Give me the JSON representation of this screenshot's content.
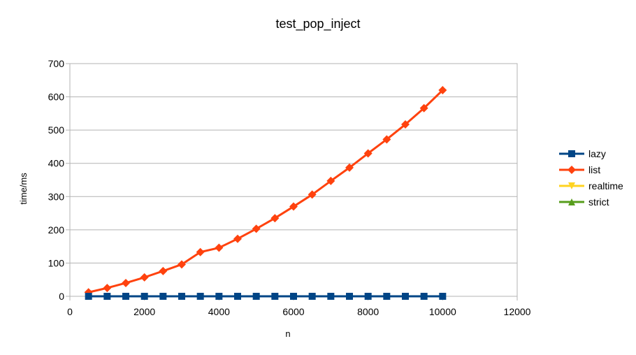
{
  "chart_data": {
    "type": "line",
    "title": "test_pop_inject",
    "xlabel": "n",
    "ylabel": "time/ms",
    "xlim": [
      0,
      12000
    ],
    "ylim": [
      0,
      700
    ],
    "x_ticks": [
      0,
      2000,
      4000,
      6000,
      8000,
      10000,
      12000
    ],
    "y_ticks": [
      0,
      100,
      200,
      300,
      400,
      500,
      600,
      700
    ],
    "grid": "horizontal",
    "legend_position": "right",
    "series": [
      {
        "name": "lazy",
        "color": "#004586",
        "marker": "square",
        "x": [
          500,
          1000,
          1500,
          2000,
          2500,
          3000,
          3500,
          4000,
          4500,
          5000,
          5500,
          6000,
          6500,
          7000,
          7500,
          8000,
          8500,
          9000,
          9500,
          10000
        ],
        "y": [
          0,
          0,
          0,
          0,
          0,
          0,
          0,
          0,
          0,
          0,
          0,
          0,
          0,
          0,
          0,
          0,
          0,
          0,
          0,
          0
        ]
      },
      {
        "name": "list",
        "color": "#ff420e",
        "marker": "diamond",
        "x": [
          500,
          1000,
          1500,
          2000,
          2500,
          3000,
          3500,
          4000,
          4500,
          5000,
          5500,
          6000,
          6500,
          7000,
          7500,
          8000,
          8500,
          9000,
          9500,
          10000
        ],
        "y": [
          12,
          25,
          40,
          57,
          76,
          96,
          133,
          146,
          173,
          203,
          235,
          270,
          306,
          347,
          387,
          430,
          472,
          517,
          566,
          620
        ]
      },
      {
        "name": "realtime",
        "color": "#ffd320",
        "marker": "triangle-down",
        "x": [
          500,
          1000,
          1500,
          2000,
          2500,
          3000,
          3500,
          4000,
          4500,
          5000,
          5500,
          6000,
          6500,
          7000,
          7500,
          8000,
          8500,
          9000,
          9500,
          10000
        ],
        "y": [
          0,
          0,
          0,
          0,
          0,
          0,
          0,
          0,
          0,
          0,
          0,
          0,
          0,
          0,
          0,
          0,
          0,
          0,
          0,
          0
        ]
      },
      {
        "name": "strict",
        "color": "#579d1c",
        "marker": "triangle-up",
        "x": [
          500,
          1000,
          1500,
          2000,
          2500,
          3000,
          3500,
          4000,
          4500,
          5000,
          5500,
          6000,
          6500,
          7000,
          7500,
          8000,
          8500,
          9000,
          9500,
          10000
        ],
        "y": [
          0,
          0,
          0,
          0,
          0,
          0,
          0,
          0,
          0,
          0,
          0,
          0,
          0,
          0,
          0,
          0,
          0,
          0,
          0,
          0
        ]
      }
    ]
  }
}
